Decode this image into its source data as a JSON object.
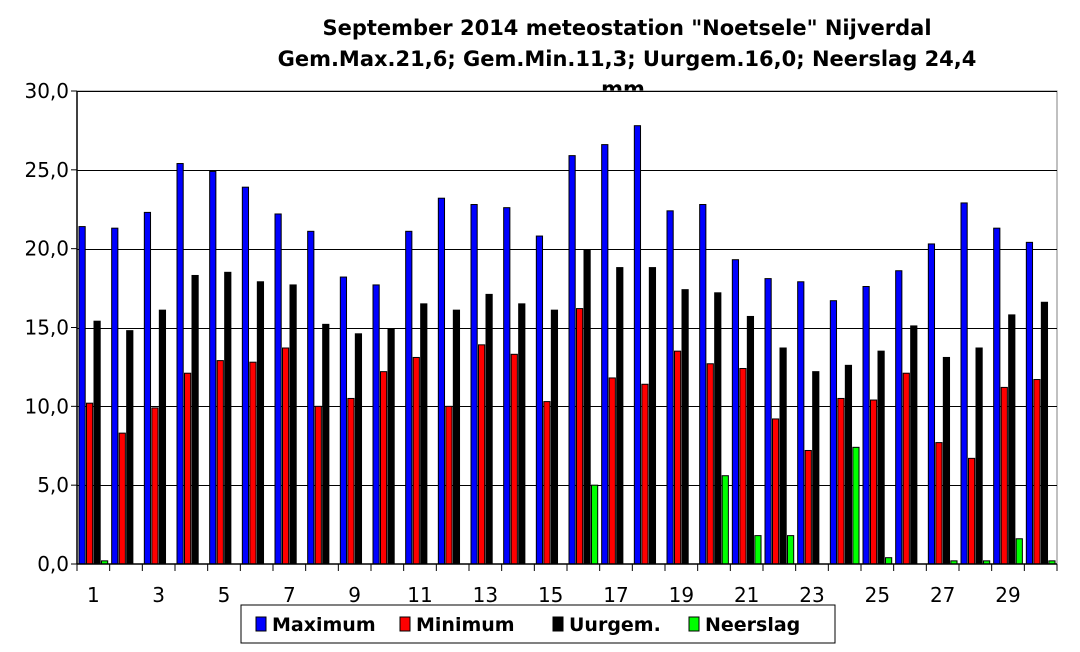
{
  "chart_data": {
    "type": "bar",
    "title_lines": [
      "September 2014 meteostation \"Noetsele\" Nijverdal",
      "Gem.Max.21,6; Gem.Min.11,3; Uurgem.16,0;  Neerslag 24,4",
      "mm."
    ],
    "xlabel": "",
    "ylabel": "",
    "ylim": [
      0,
      30
    ],
    "y_ticks": [
      "0,0",
      "5,0",
      "10,0",
      "15,0",
      "20,0",
      "25,0",
      "30,0"
    ],
    "x_tick_labels": [
      "1",
      "3",
      "5",
      "7",
      "9",
      "11",
      "13",
      "15",
      "17",
      "19",
      "21",
      "23",
      "25",
      "27",
      "29"
    ],
    "grid": true,
    "legend_position": "bottom",
    "categories": [
      1,
      2,
      3,
      4,
      5,
      6,
      7,
      8,
      9,
      10,
      11,
      12,
      13,
      14,
      15,
      16,
      17,
      18,
      19,
      20,
      21,
      22,
      23,
      24,
      25,
      26,
      27,
      28,
      29,
      30
    ],
    "series": [
      {
        "name": "Maximum",
        "color": "#0000ff",
        "values": [
          21.4,
          21.3,
          22.3,
          25.4,
          24.9,
          23.9,
          22.2,
          21.1,
          18.2,
          17.7,
          21.1,
          23.2,
          22.8,
          22.6,
          20.8,
          25.9,
          26.6,
          27.8,
          22.4,
          22.8,
          19.3,
          18.1,
          17.9,
          16.7,
          17.6,
          18.6,
          20.3,
          22.9,
          21.3,
          20.4
        ]
      },
      {
        "name": "Minimum",
        "color": "#ff0000",
        "values": [
          10.2,
          8.3,
          9.9,
          12.1,
          12.9,
          12.8,
          13.7,
          10.0,
          10.5,
          12.2,
          13.1,
          10.0,
          13.9,
          13.3,
          10.3,
          16.2,
          11.8,
          11.4,
          13.5,
          12.7,
          12.4,
          9.2,
          7.2,
          10.5,
          10.4,
          12.1,
          7.7,
          6.7,
          11.2,
          11.7
        ]
      },
      {
        "name": "Uurgem.",
        "color": "#000000",
        "values": [
          15.4,
          14.8,
          16.1,
          18.3,
          18.5,
          17.9,
          17.7,
          15.2,
          14.6,
          14.9,
          16.5,
          16.1,
          17.1,
          16.5,
          16.1,
          19.9,
          18.8,
          18.8,
          17.4,
          17.2,
          15.7,
          13.7,
          12.2,
          12.6,
          13.5,
          15.1,
          13.1,
          13.7,
          15.8,
          16.6
        ]
      },
      {
        "name": "Neerslag",
        "color": "#00ff00",
        "values": [
          0.2,
          0,
          0,
          0,
          0,
          0,
          0,
          0,
          0,
          0,
          0,
          0,
          0,
          0,
          0,
          5.0,
          0,
          0,
          0,
          5.6,
          1.8,
          1.8,
          0,
          7.4,
          0.4,
          0,
          0.2,
          0.2,
          1.6,
          0.2
        ]
      }
    ]
  }
}
